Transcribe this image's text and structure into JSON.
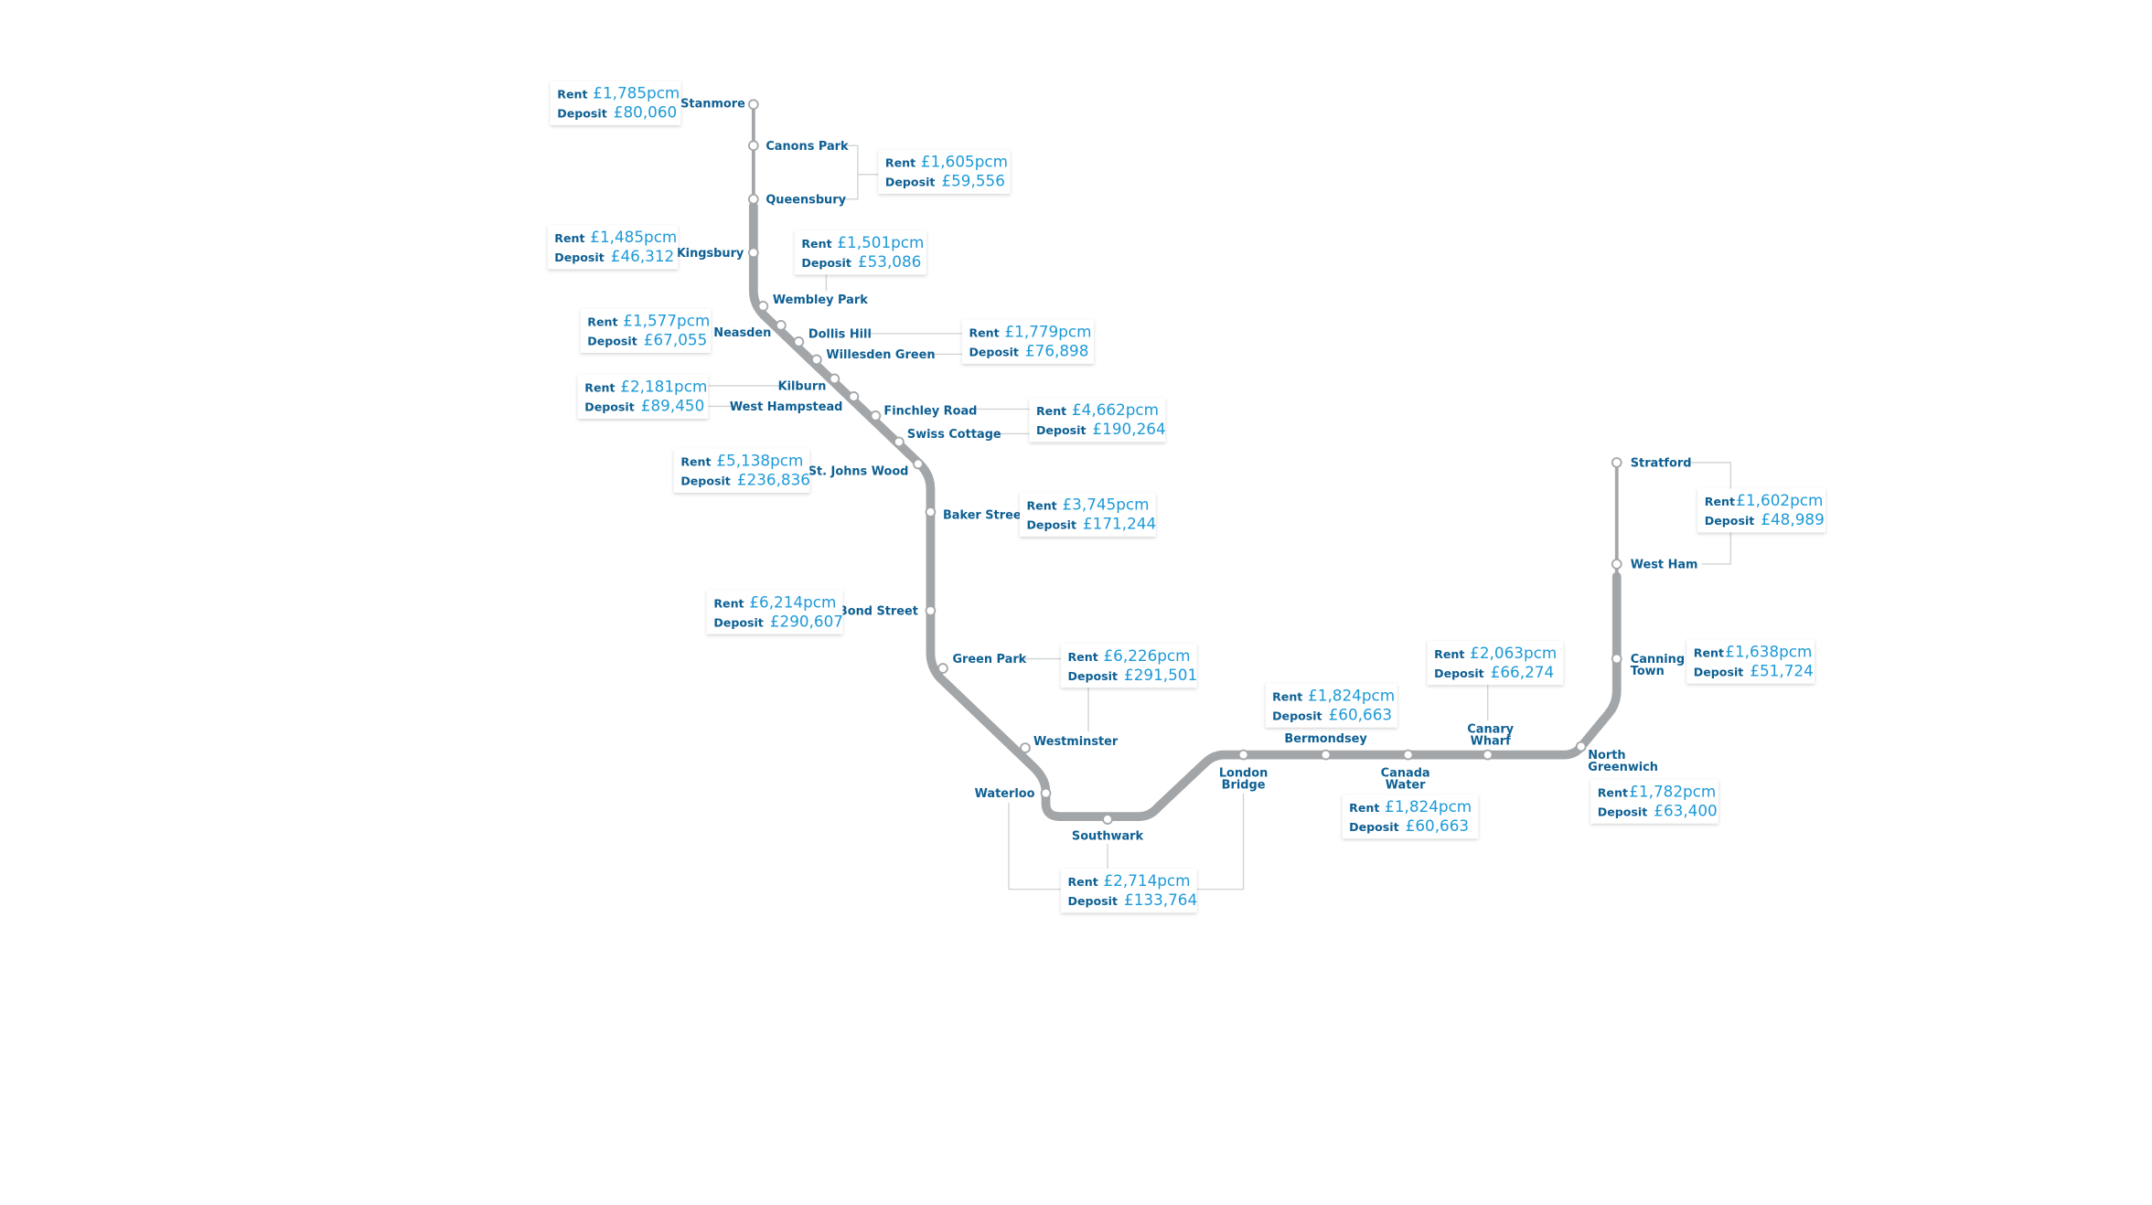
{
  "map": {
    "line_color": "#a3a6a9",
    "label_color": "#0d5f93",
    "value_color": "#1d9ad8",
    "stations": [
      "Stanmore",
      "Canons Park",
      "Queensbury",
      "Kingsbury",
      "Wembley Park",
      "Neasden",
      "Dollis Hill",
      "Willesden Green",
      "Kilburn",
      "West Hampstead",
      "Finchley Road",
      "Swiss Cottage",
      "St. Johns Wood",
      "Baker Street",
      "Bond Street",
      "Green Park",
      "Westminster",
      "Waterloo",
      "Southwark",
      "London Bridge",
      "Bermondsey",
      "Canada Water",
      "Canary Wharf",
      "North Greenwich",
      "Canning Town",
      "West Ham",
      "Stratford"
    ],
    "rent_label": "Rent",
    "deposit_label": "Deposit",
    "price_boxes": [
      {
        "stations": [
          "Stanmore"
        ],
        "rent": "£1,785pcm",
        "deposit": "£80,060"
      },
      {
        "stations": [
          "Canons Park",
          "Queensbury"
        ],
        "rent": "£1,605pcm",
        "deposit": "£59,556"
      },
      {
        "stations": [
          "Kingsbury"
        ],
        "rent": "£1,485pcm",
        "deposit": "£46,312"
      },
      {
        "stations": [
          "Wembley Park"
        ],
        "rent": "£1,501pcm",
        "deposit": "£53,086"
      },
      {
        "stations": [
          "Neasden"
        ],
        "rent": "£1,577pcm",
        "deposit": "£67,055"
      },
      {
        "stations": [
          "Dollis Hill",
          "Willesden Green"
        ],
        "rent": "£1,779pcm",
        "deposit": "£76,898"
      },
      {
        "stations": [
          "Kilburn",
          "West Hampstead"
        ],
        "rent": "£2,181pcm",
        "deposit": "£89,450"
      },
      {
        "stations": [
          "Finchley Road",
          "Swiss Cottage"
        ],
        "rent": "£4,662pcm",
        "deposit": "£190,264"
      },
      {
        "stations": [
          "St. Johns Wood"
        ],
        "rent": "£5,138pcm",
        "deposit": "£236,836"
      },
      {
        "stations": [
          "Baker Street"
        ],
        "rent": "£3,745pcm",
        "deposit": "£171,244"
      },
      {
        "stations": [
          "Bond Street"
        ],
        "rent": "£6,214pcm",
        "deposit": "£290,607"
      },
      {
        "stations": [
          "Green Park",
          "Westminster"
        ],
        "rent": "£6,226pcm",
        "deposit": "£291,501"
      },
      {
        "stations": [
          "Waterloo",
          "Southwark",
          "London Bridge"
        ],
        "rent": "£2,714pcm",
        "deposit": "£133,764"
      },
      {
        "stations": [
          "Bermondsey"
        ],
        "rent": "£1,824pcm",
        "deposit": "£60,663"
      },
      {
        "stations": [
          "Canada Water"
        ],
        "rent": "£1,824pcm",
        "deposit": "£60,663"
      },
      {
        "stations": [
          "Canary Wharf"
        ],
        "rent": "£2,063pcm",
        "deposit": "£66,274"
      },
      {
        "stations": [
          "North Greenwich"
        ],
        "rent": "£1,782pcm",
        "deposit": "£63,400"
      },
      {
        "stations": [
          "Canning Town"
        ],
        "rent": "£1,638pcm",
        "deposit": "£51,724"
      },
      {
        "stations": [
          "Stratford",
          "West Ham"
        ],
        "rent": "£1,602pcm",
        "deposit": "£48,989"
      }
    ]
  }
}
